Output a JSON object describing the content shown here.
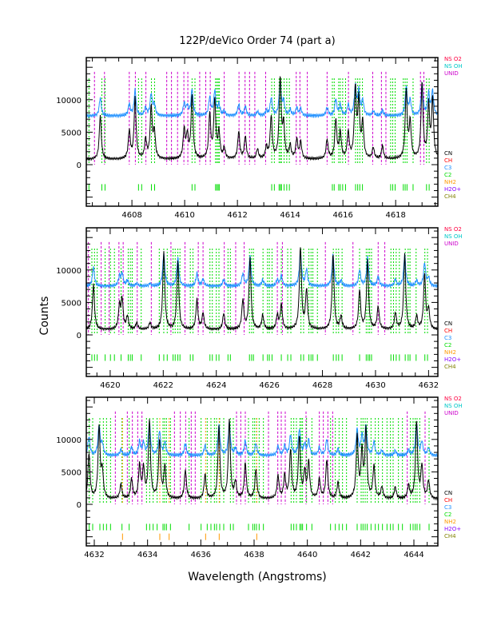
{
  "chart_data": {
    "type": "line",
    "title": "122P/deVico Order 74 (part a)",
    "xlabel": "Wavelength (Angstroms)",
    "ylabel": "Counts",
    "ylim": [
      -6400,
      16500
    ],
    "yticks": [
      0,
      5000,
      10000
    ],
    "series_names": [
      "spectrum (black)",
      "model (blue)"
    ],
    "colors": {
      "spectrum": "#000000",
      "model": "#1e90ff",
      "unid": "#cc00cc",
      "c2": "#00dd00",
      "nh2": "#ff9900"
    },
    "legend_top": [
      {
        "label": "NS O2",
        "color": "#ff0040"
      },
      {
        "label": "NS OH",
        "color": "#00c8c8"
      },
      {
        "label": "UNID",
        "color": "#cc00cc"
      }
    ],
    "legend_species": [
      {
        "label": "CN",
        "color": "#000000"
      },
      {
        "label": "CH",
        "color": "#ff0000"
      },
      {
        "label": "C3",
        "color": "#1e90ff"
      },
      {
        "label": "C2",
        "color": "#00dd00"
      },
      {
        "label": "NH2",
        "color": "#ff9900"
      },
      {
        "label": "H2O+",
        "color": "#8800ff"
      },
      {
        "label": "CH4",
        "color": "#808000"
      }
    ],
    "model_continuum": 7500,
    "spectrum_continuum": 800,
    "panels": [
      {
        "xlim": [
          4606.27,
          4619.6
        ],
        "xticks": [
          "4608",
          "4610",
          "4612",
          "4614",
          "4616",
          "4618"
        ],
        "peaks": [
          [
            4606.8,
            6800
          ],
          [
            4607.9,
            4300
          ],
          [
            4608.12,
            9300
          ],
          [
            4608.52,
            3000
          ],
          [
            4608.73,
            8000
          ],
          [
            4608.85,
            4000
          ],
          [
            4609.98,
            4500
          ],
          [
            4610.1,
            3500
          ],
          [
            4610.28,
            9800
          ],
          [
            4610.95,
            6800
          ],
          [
            4611.14,
            9000
          ],
          [
            4611.3,
            4000
          ],
          [
            4611.5,
            1600
          ],
          [
            4612.05,
            4200
          ],
          [
            4612.3,
            3500
          ],
          [
            4612.76,
            1500
          ],
          [
            4613.1,
            1800
          ],
          [
            4613.28,
            6500
          ],
          [
            4613.62,
            12500
          ],
          [
            4613.75,
            5000
          ],
          [
            4614.0,
            2000
          ],
          [
            4614.25,
            3000
          ],
          [
            4614.4,
            2500
          ],
          [
            4615.4,
            3000
          ],
          [
            4615.73,
            6000
          ],
          [
            4615.9,
            4000
          ],
          [
            4616.2,
            4000
          ],
          [
            4616.47,
            10500
          ],
          [
            4616.6,
            8500
          ],
          [
            4616.75,
            5500
          ],
          [
            4617.15,
            1700
          ],
          [
            4617.5,
            2000
          ],
          [
            4618.4,
            10500
          ],
          [
            4618.55,
            5500
          ],
          [
            4619.0,
            11500
          ],
          [
            4619.25,
            8000
          ],
          [
            4619.4,
            9000
          ]
        ],
        "unid": [
          4606.58,
          4606.96,
          4607.9,
          4608.13,
          4608.53,
          4609.32,
          4609.5,
          4609.73,
          4609.97,
          4610.12,
          4610.57,
          4610.8,
          4610.97,
          4611.5,
          4612.06,
          4612.29,
          4612.46,
          4612.66,
          4613.07,
          4614.23,
          4614.37,
          4614.65,
          4615.4,
          4616.21,
          4617.13,
          4617.46,
          4617.63,
          4618.94,
          4619.07
        ],
        "c2": [
          4606.37,
          4606.86,
          4606.98,
          4608.25,
          4608.37,
          4608.74,
          4608.86,
          4610.28,
          4610.39,
          4611.17,
          4611.22,
          4611.27,
          4611.31,
          4613.3,
          4613.4,
          4613.58,
          4613.63,
          4613.67,
          4613.77,
          4613.87,
          4613.97,
          4615.6,
          4615.67,
          4615.84,
          4615.9,
          4615.99,
          4616.1,
          4616.48,
          4616.56,
          4616.64,
          4616.74,
          4617.81,
          4617.89,
          4617.98,
          4618.29,
          4618.36,
          4618.43,
          4618.66,
          4619.17,
          4619.27
        ],
        "nh2": []
      },
      {
        "xlim": [
          4619.1,
          4632.35
        ],
        "xticks": [
          "4620",
          "4622",
          "4624",
          "4626",
          "4628",
          "4630",
          "4632"
        ],
        "peaks": [
          [
            4619.37,
            7000
          ],
          [
            4620.35,
            3500
          ],
          [
            4620.45,
            4500
          ],
          [
            4620.65,
            2000
          ],
          [
            4621.0,
            1000
          ],
          [
            4621.5,
            1000
          ],
          [
            4622.02,
            12000
          ],
          [
            4622.55,
            10500
          ],
          [
            4623.27,
            4500
          ],
          [
            4623.5,
            2500
          ],
          [
            4624.28,
            2500
          ],
          [
            4625.0,
            4500
          ],
          [
            4625.27,
            11000
          ],
          [
            4625.75,
            2200
          ],
          [
            4626.3,
            2200
          ],
          [
            4626.45,
            3800
          ],
          [
            4627.17,
            13000
          ],
          [
            4627.4,
            6000
          ],
          [
            4628.4,
            11500
          ],
          [
            4628.7,
            2000
          ],
          [
            4629.4,
            6000
          ],
          [
            4629.7,
            10500
          ],
          [
            4630.1,
            3500
          ],
          [
            4630.75,
            2500
          ],
          [
            4631.1,
            11500
          ],
          [
            4631.55,
            2000
          ],
          [
            4631.85,
            8500
          ],
          [
            4632.0,
            3000
          ]
        ],
        "unid": [
          4619.18,
          4619.66,
          4619.96,
          4620.33,
          4620.49,
          4621.02,
          4621.55,
          4622.29,
          4622.82,
          4623.32,
          4623.5,
          4624.3,
          4624.73,
          4625.05,
          4626.3,
          4626.49,
          4628.11,
          4629.15,
          4630.1,
          4630.35
        ],
        "c2": [
          4619.31,
          4619.41,
          4619.51,
          4619.81,
          4620.01,
          4620.16,
          4620.41,
          4620.68,
          4620.76,
          4620.83,
          4621.17,
          4621.85,
          4622.02,
          4622.15,
          4622.37,
          4622.45,
          4622.55,
          4622.63,
          4623.02,
          4623.12,
          4623.76,
          4623.85,
          4624.0,
          4624.1,
          4624.44,
          4624.53,
          4625.25,
          4625.33,
          4625.4,
          4625.76,
          4625.93,
          4626.0,
          4626.1,
          4626.45,
          4626.69,
          4626.81,
          4627.19,
          4627.29,
          4627.49,
          4627.57,
          4627.64,
          4627.81,
          4628.41,
          4628.52,
          4628.61,
          4628.74,
          4629.4,
          4629.65,
          4629.72,
          4629.78,
          4629.85,
          4630.58,
          4630.68,
          4630.78,
          4630.9,
          4631.12,
          4631.23,
          4631.3,
          4631.53,
          4631.86,
          4631.96
        ],
        "nh2": []
      },
      {
        "xlim": [
          4631.7,
          4644.9
        ],
        "xticks": [
          "4632",
          "4634",
          "4636",
          "4638",
          "4640",
          "4642",
          "4644"
        ],
        "peaks": [
          [
            4631.8,
            7000
          ],
          [
            4632.18,
            11000
          ],
          [
            4632.3,
            4000
          ],
          [
            4633.0,
            2200
          ],
          [
            4633.4,
            3000
          ],
          [
            4633.7,
            5000
          ],
          [
            4633.85,
            4500
          ],
          [
            4634.07,
            12000
          ],
          [
            4634.45,
            9000
          ],
          [
            4634.65,
            5000
          ],
          [
            4635.42,
            4500
          ],
          [
            4636.16,
            3700
          ],
          [
            4636.68,
            11000
          ],
          [
            4637.07,
            12000
          ],
          [
            4637.3,
            2500
          ],
          [
            4637.67,
            5500
          ],
          [
            4638.07,
            4500
          ],
          [
            4638.9,
            3500
          ],
          [
            4639.15,
            3500
          ],
          [
            4639.37,
            7500
          ],
          [
            4639.7,
            9500
          ],
          [
            4639.9,
            4000
          ],
          [
            4640.05,
            5500
          ],
          [
            4640.45,
            3000
          ],
          [
            4640.73,
            6000
          ],
          [
            4641.15,
            2500
          ],
          [
            4641.87,
            9500
          ],
          [
            4642.05,
            7000
          ],
          [
            4642.2,
            10500
          ],
          [
            4642.5,
            5000
          ],
          [
            4642.8,
            1800
          ],
          [
            4643.3,
            1800
          ],
          [
            4643.8,
            2000
          ],
          [
            4644.1,
            12000
          ],
          [
            4644.3,
            5000
          ],
          [
            4644.55,
            2800
          ]
        ],
        "unid": [
          4632.79,
          4633.24,
          4633.43,
          4633.63,
          4633.79,
          4635.01,
          4635.23,
          4635.43,
          4635.64,
          4635.79,
          4637.34,
          4637.5,
          4637.67,
          4638.54,
          4638.89,
          4639.02,
          4639.17,
          4639.95,
          4640.45,
          4640.6,
          4640.77,
          4640.95,
          4643.75,
          4644.42
        ],
        "c2": [
          4631.81,
          4631.94,
          4632.21,
          4632.34,
          4632.46,
          4632.61,
          4633.04,
          4633.31,
          4633.96,
          4634.08,
          4634.21,
          4634.36,
          4634.58,
          4634.64,
          4634.71,
          4634.86,
          4635.56,
          4636.01,
          4636.24,
          4636.38,
          4636.51,
          4636.59,
          4636.71,
          4636.86,
          4637.11,
          4637.22,
          4637.79,
          4637.95,
          4638.02,
          4638.09,
          4638.19,
          4638.35,
          4639.39,
          4639.49,
          4639.59,
          4639.72,
          4639.77,
          4639.82,
          4639.97,
          4640.17,
          4640.87,
          4641.05,
          4641.19,
          4641.32,
          4641.47,
          4641.87,
          4642.02,
          4642.09,
          4642.17,
          4642.25,
          4642.39,
          4642.55,
          4642.67,
          4642.82,
          4642.99,
          4643.12,
          4643.22,
          4643.42,
          4643.57,
          4643.87,
          4643.97,
          4644.05,
          4644.12,
          4644.22,
          4644.57
        ],
        "nh2": [
          4633.06,
          4634.46,
          4634.81,
          4636.18,
          4636.69,
          4638.1
        ]
      }
    ]
  }
}
